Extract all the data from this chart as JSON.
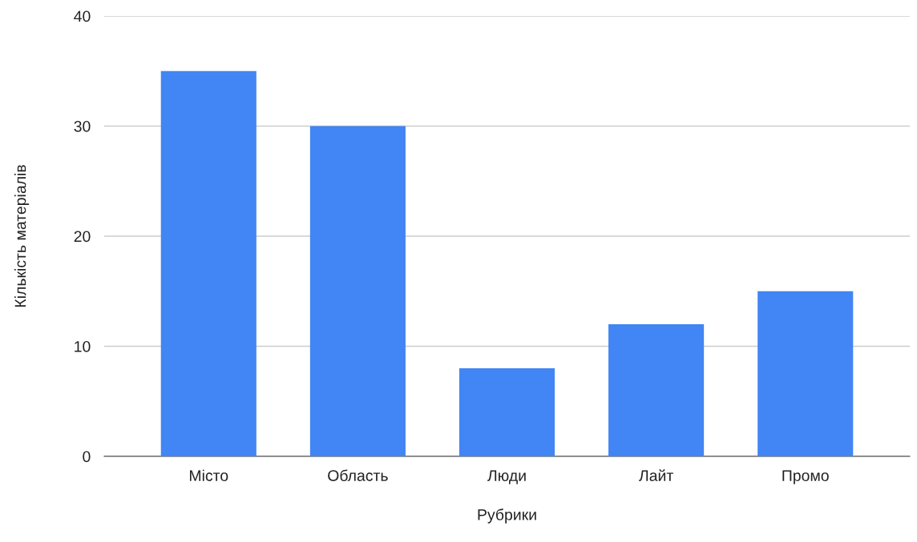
{
  "chart_data": {
    "type": "bar",
    "xlabel": "Рубрики",
    "ylabel": "Кількість матеріалів",
    "categories": [
      "Місто",
      "Область",
      "Люди",
      "Лайт",
      "Промо"
    ],
    "values": [
      35,
      30,
      8,
      12,
      15
    ],
    "color": "#4285f4",
    "ylim": [
      0,
      40
    ],
    "yticks": [
      0,
      10,
      20,
      30,
      40
    ],
    "grid": "y",
    "legend": false
  }
}
